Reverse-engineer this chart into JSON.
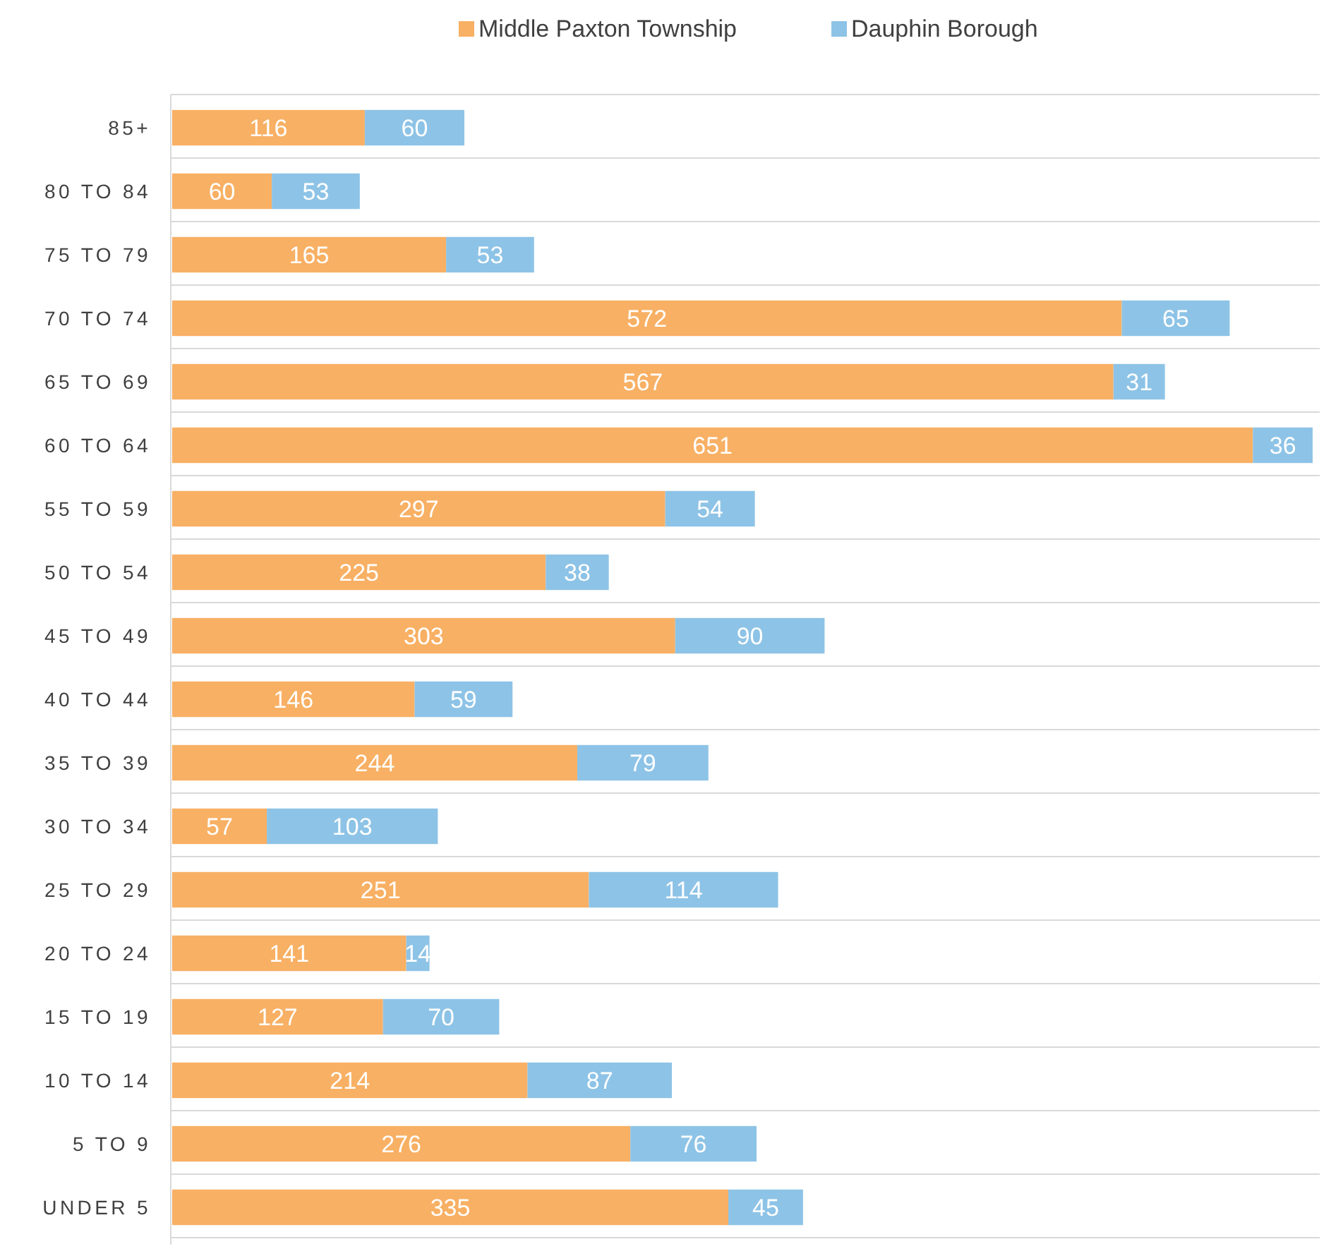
{
  "chart_data": {
    "type": "bar",
    "orientation": "horizontal",
    "stacked": true,
    "data_labels": true,
    "grid": "y",
    "legend": "top",
    "categories": [
      "85+",
      "80 TO 84",
      "75 TO 79",
      "70 TO 74",
      "65 TO 69",
      "60 TO 64",
      "55 TO 59",
      "50 TO 54",
      "45 TO 49",
      "40 TO 44",
      "35 TO 39",
      "30 TO 34",
      "25 TO 29",
      "20 TO 24",
      "15 TO 19",
      "10 TO 14",
      "5 TO 9",
      "UNDER 5"
    ],
    "series": [
      {
        "name": "Middle Paxton Township",
        "color": "#f8b064",
        "values": [
          116,
          60,
          165,
          572,
          567,
          651,
          297,
          225,
          303,
          146,
          244,
          57,
          251,
          141,
          127,
          214,
          276,
          335
        ]
      },
      {
        "name": "Dauphin Borough",
        "color": "#8dc3e6",
        "values": [
          60,
          53,
          53,
          65,
          31,
          36,
          54,
          38,
          90,
          59,
          79,
          103,
          114,
          14,
          70,
          87,
          76,
          45
        ]
      }
    ]
  }
}
